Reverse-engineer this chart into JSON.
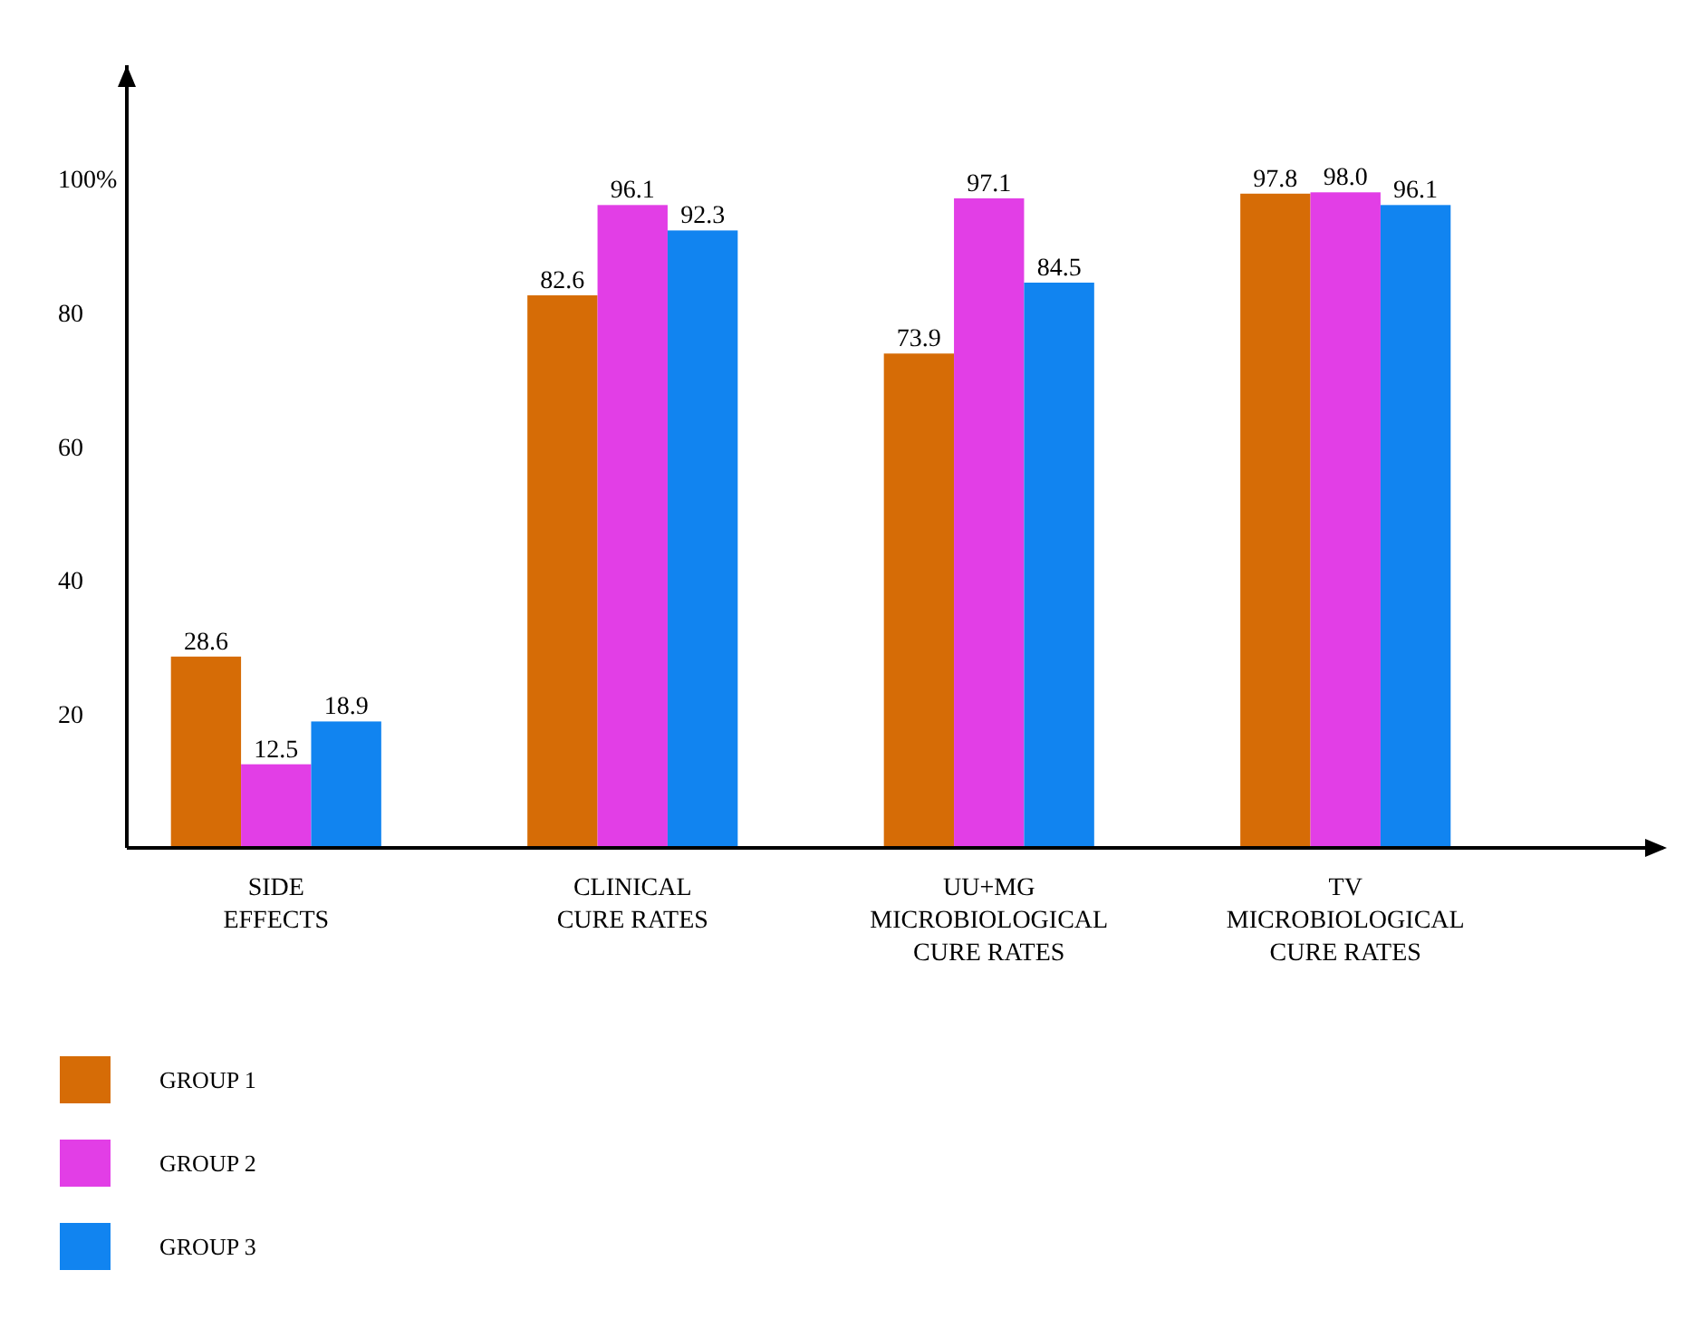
{
  "chart_data": {
    "type": "bar",
    "categories": [
      "SIDE EFFECTS",
      "CLINICAL CURE RATES",
      "UU+MG MICROBIOLOGICAL CURE RATES",
      "TV MICROBIOLOGICAL CURE RATES"
    ],
    "series": [
      {
        "name": "GROUP 1",
        "color": "#d66c06",
        "values": [
          28.6,
          82.6,
          73.9,
          97.8
        ],
        "value_labels": [
          "28.6",
          "82.6",
          "73.9",
          "97.8"
        ]
      },
      {
        "name": "GROUP 2",
        "color": "#e23ee6",
        "values": [
          12.5,
          96.1,
          97.1,
          98
        ],
        "value_labels": [
          "12.5",
          "96.1",
          "97.1",
          "98.0"
        ]
      },
      {
        "name": "GROUP 3",
        "color": "#1184f0",
        "values": [
          18.9,
          92.3,
          84.5,
          96.1
        ],
        "value_labels": [
          "18.9",
          "92.3",
          "84.5",
          "96.1"
        ]
      }
    ],
    "ylim": [
      0,
      117
    ],
    "yticks": [
      20,
      40,
      60,
      80,
      {
        "value": 100,
        "label": "100%"
      }
    ],
    "legend": "bottom left"
  }
}
